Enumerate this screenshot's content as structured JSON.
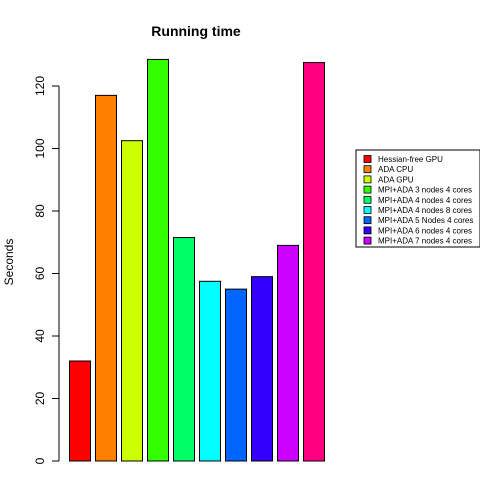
{
  "chart_data": {
    "type": "bar",
    "title": "Running time",
    "xlabel": "",
    "ylabel": "Seconds",
    "ylim": [
      0,
      130
    ],
    "yticks": [
      0,
      20,
      40,
      60,
      80,
      100,
      120
    ],
    "grid": false,
    "legend_position": "right",
    "categories": [
      "Hessian-free GPU",
      "ADA CPU",
      "ADA GPU",
      "MPI+ADA 3 nodes 4 cores",
      "MPI+ADA 4 nodes 4 cores",
      "MPI+ADA 4 nodes 8 cores",
      "MPI+ADA 5 Nodes 4 cores",
      "MPI+ADA 6 nodes 4 cores",
      "MPI+ADA 7 nodes 4 cores",
      ""
    ],
    "values": [
      32,
      117,
      102.5,
      128.5,
      71.5,
      57.5,
      55,
      59,
      69,
      127.5
    ],
    "colors": [
      "#FF0000",
      "#FF8000",
      "#CCFF00",
      "#33FF00",
      "#00FF66",
      "#00FFFF",
      "#0066FF",
      "#3300FF",
      "#CC00FF",
      "#FF0080"
    ],
    "legend": [
      "Hessian-free GPU",
      "ADA CPU",
      "ADA GPU",
      "MPI+ADA 3 nodes 4 cores",
      "MPI+ADA 4 nodes 4 cores",
      "MPI+ADA 4 nodes 8 cores",
      "MPI+ADA 5 Nodes 4 cores",
      "MPI+ADA 6 nodes 4 cores",
      "MPI+ADA 7 nodes 4 cores"
    ]
  }
}
